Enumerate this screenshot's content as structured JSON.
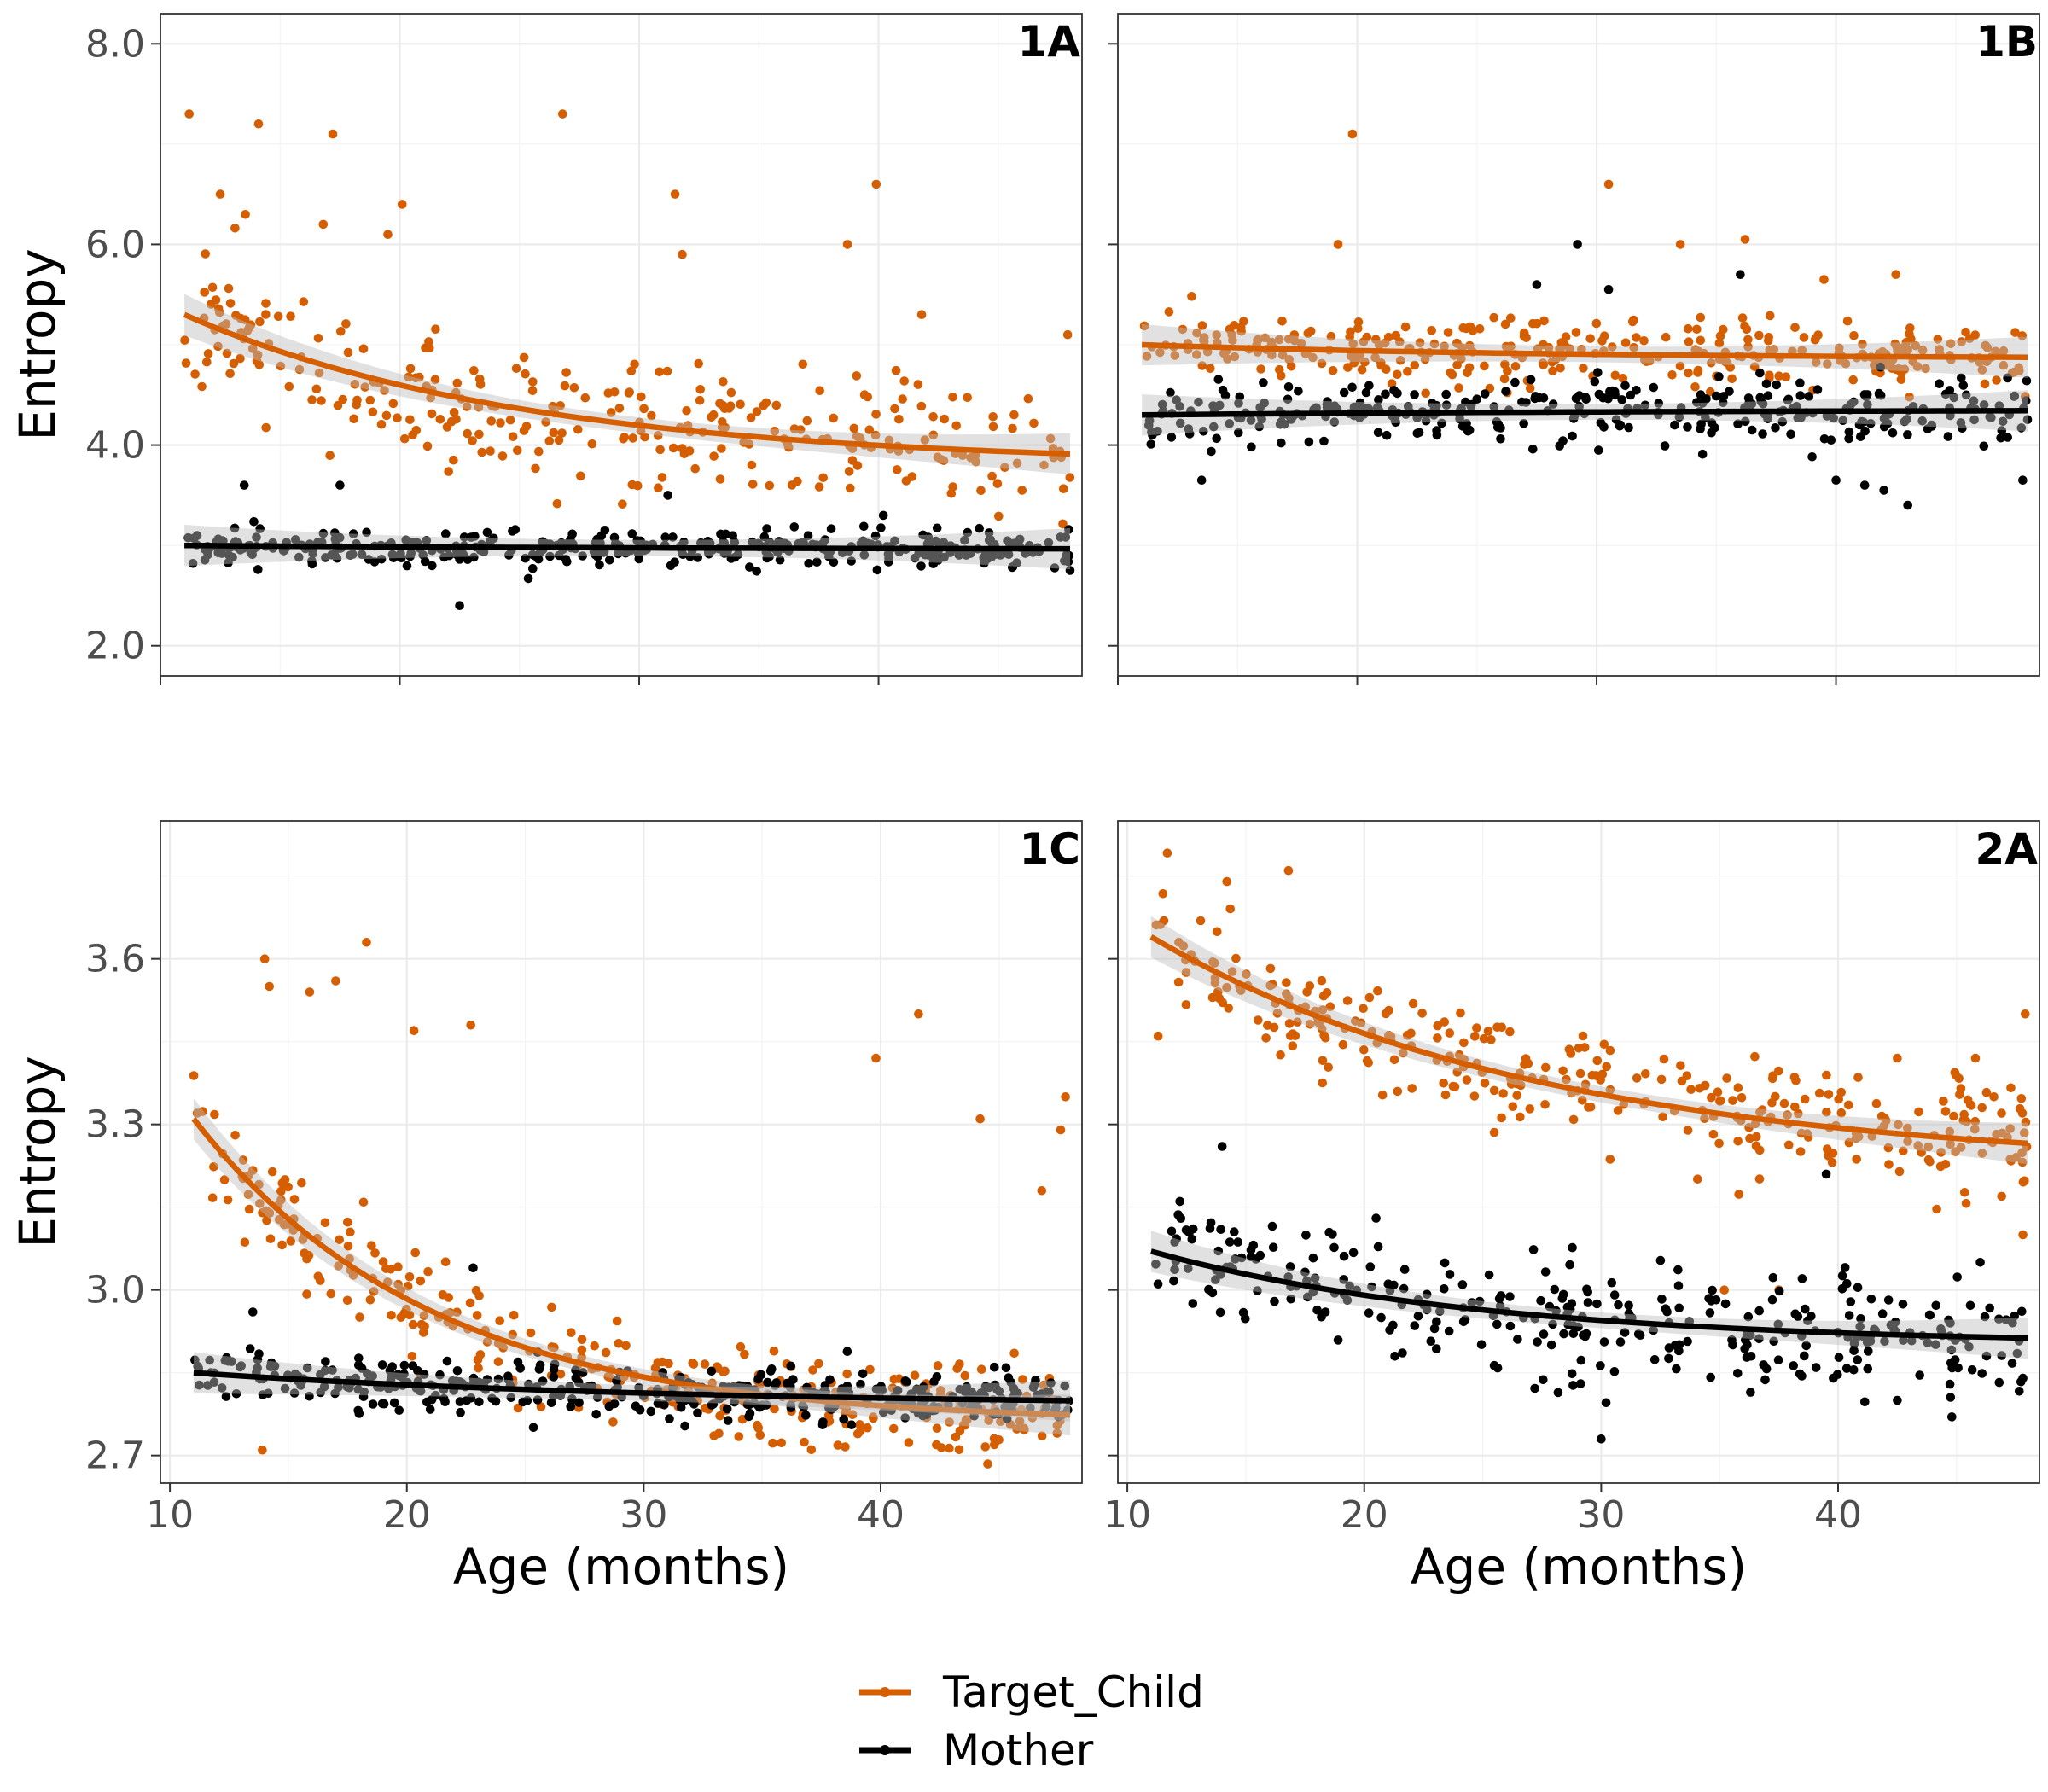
{
  "legend": {
    "items": [
      {
        "label": "Target_Child",
        "color": "#D55E00"
      },
      {
        "label": "Mother",
        "color": "#000000"
      }
    ]
  },
  "colors": {
    "child": "#D55E00",
    "mother": "#000000",
    "ribbon": "#cccccc"
  },
  "chart_data": [
    {
      "type": "scatter",
      "panel": "1A",
      "xlabel": "",
      "ylabel": "Entropy",
      "xlim": [
        10,
        48.5
      ],
      "ylim": [
        1.7,
        8.3
      ],
      "x_ticks": [
        10,
        20,
        30,
        40
      ],
      "y_ticks": [
        2.0,
        4.0,
        6.0,
        8.0
      ],
      "y_tick_labels": [
        "2.0",
        "4.0",
        "6.0",
        "8.0"
      ],
      "show_x_tick_labels": false,
      "grid": true,
      "series": [
        {
          "name": "Target_Child",
          "color": "#D55E00",
          "x_range": [
            11,
            48
          ],
          "points": 300,
          "seed": 11,
          "fit": {
            "a": 3.8,
            "b": 1.5,
            "k": 0.07
          },
          "jitter": 0.7,
          "outliers": [
            [
              11.2,
              7.3
            ],
            [
              12.5,
              6.5
            ],
            [
              14.1,
              7.2
            ],
            [
              17.2,
              7.1
            ],
            [
              19.5,
              6.1
            ],
            [
              20.1,
              6.4
            ],
            [
              26.8,
              7.3
            ],
            [
              31.5,
              6.5
            ],
            [
              39.9,
              6.6
            ],
            [
              38.7,
              6.0
            ],
            [
              16.8,
              6.2
            ],
            [
              31.8,
              5.9
            ],
            [
              41.8,
              5.3
            ],
            [
              47.9,
              5.1
            ]
          ]
        },
        {
          "name": "Mother",
          "color": "#000000",
          "x_range": [
            11,
            48
          ],
          "points": 380,
          "seed": 23,
          "fit": {
            "a": 2.96,
            "b": 0.04,
            "k": 0.05
          },
          "jitter": 0.17,
          "outliers": [
            [
              22.5,
              2.4
            ],
            [
              13.5,
              3.6
            ],
            [
              17.5,
              3.6
            ],
            [
              31.2,
              3.5
            ],
            [
              40.2,
              3.3
            ],
            [
              48,
              2.75
            ]
          ]
        }
      ]
    },
    {
      "type": "scatter",
      "panel": "1B",
      "xlabel": "",
      "ylabel": "",
      "xlim": [
        10,
        48.5
      ],
      "ylim": [
        1.7,
        8.3
      ],
      "x_ticks": [
        10,
        20,
        30,
        40
      ],
      "y_ticks": [
        2.0,
        4.0,
        6.0,
        8.0
      ],
      "show_x_tick_labels": false,
      "show_y_tick_labels": false,
      "grid": true,
      "series": [
        {
          "name": "Target_Child",
          "color": "#D55E00",
          "x_range": [
            11,
            48
          ],
          "points": 330,
          "seed": 37,
          "fit": {
            "a": 4.86,
            "b": 0.14,
            "k": 0.06
          },
          "jitter": 0.33,
          "outliers": [
            [
              19.8,
              7.1
            ],
            [
              30.5,
              6.6
            ],
            [
              19.2,
              6.0
            ],
            [
              36.2,
              6.05
            ],
            [
              33.5,
              6.0
            ],
            [
              39.5,
              5.65
            ],
            [
              42.5,
              5.7
            ]
          ]
        },
        {
          "name": "Mother",
          "color": "#000000",
          "x_range": [
            11,
            48
          ],
          "points": 330,
          "seed": 53,
          "fit": {
            "a": 4.35,
            "b": -0.05,
            "k": 0.05
          },
          "jitter": 0.32,
          "outliers": [
            [
              29.2,
              6.0
            ],
            [
              30.5,
              5.55
            ],
            [
              36,
              5.7
            ],
            [
              27.5,
              5.6
            ],
            [
              13.5,
              3.65
            ],
            [
              40,
              3.65
            ],
            [
              42,
              3.55
            ],
            [
              43,
              3.4
            ],
            [
              47.8,
              3.65
            ],
            [
              41.2,
              3.6
            ]
          ]
        }
      ]
    },
    {
      "type": "scatter",
      "panel": "1C",
      "xlabel": "Age (months)",
      "ylabel": "Entropy",
      "xlim": [
        9.6,
        48.5
      ],
      "ylim": [
        2.65,
        3.85
      ],
      "x_ticks": [
        10,
        20,
        30,
        40
      ],
      "y_ticks": [
        2.7,
        3.0,
        3.3,
        3.6
      ],
      "y_tick_labels": [
        "2.7",
        "3.0",
        "3.3",
        "3.6"
      ],
      "show_x_tick_labels": true,
      "grid": true,
      "series": [
        {
          "name": "Target_Child",
          "color": "#D55E00",
          "x_range": [
            11,
            48
          ],
          "points": 330,
          "seed": 71,
          "fit": {
            "a": 2.76,
            "b": 0.55,
            "k": 0.1
          },
          "jitter": 0.09,
          "outliers": [
            [
              14,
              3.6
            ],
            [
              18.3,
              3.63
            ],
            [
              17,
              3.56
            ],
            [
              14.2,
              3.55
            ],
            [
              15.9,
              3.54
            ],
            [
              20.3,
              3.47
            ],
            [
              22.7,
              3.48
            ],
            [
              39.8,
              3.42
            ],
            [
              41.6,
              3.5
            ],
            [
              44.2,
              3.31
            ],
            [
              47.8,
              3.35
            ],
            [
              47.6,
              3.29
            ],
            [
              46.8,
              3.18
            ],
            [
              13.9,
              2.71
            ]
          ]
        },
        {
          "name": "Mother",
          "color": "#000000",
          "x_range": [
            11,
            48
          ],
          "points": 400,
          "seed": 89,
          "fit": {
            "a": 2.79,
            "b": 0.06,
            "k": 0.05
          },
          "jitter": 0.045,
          "outliers": [
            [
              22.8,
              3.04
            ],
            [
              13.5,
              2.96
            ],
            [
              44.8,
              2.86
            ],
            [
              47.5,
              2.8
            ]
          ]
        }
      ]
    },
    {
      "type": "scatter",
      "panel": "2A",
      "xlabel": "Age (months)",
      "ylabel": "",
      "xlim": [
        9.6,
        48.5
      ],
      "ylim": [
        2.65,
        3.85
      ],
      "x_ticks": [
        10,
        20,
        30,
        40
      ],
      "y_ticks": [
        2.7,
        3.0,
        3.3,
        3.6
      ],
      "show_x_tick_labels": true,
      "show_y_tick_labels": false,
      "grid": true,
      "series": [
        {
          "name": "Target_Child",
          "color": "#D55E00",
          "x_range": [
            11,
            48
          ],
          "points": 340,
          "seed": 97,
          "fit": {
            "a": 3.22,
            "b": 0.42,
            "k": 0.06
          },
          "jitter": 0.11,
          "outliers": [
            [
              16.8,
              3.76
            ],
            [
              14.2,
              3.74
            ],
            [
              11.3,
              3.46
            ],
            [
              47.9,
              3.5
            ],
            [
              45.8,
              3.42
            ],
            [
              42.5,
              3.42
            ],
            [
              35.2,
              3.0
            ],
            [
              37.5,
              3.0
            ],
            [
              47.8,
              3.1
            ]
          ]
        },
        {
          "name": "Mother",
          "color": "#000000",
          "x_range": [
            11,
            48
          ],
          "points": 330,
          "seed": 131,
          "fit": {
            "a": 2.9,
            "b": 0.17,
            "k": 0.07
          },
          "jitter": 0.1,
          "outliers": [
            [
              14,
              3.26
            ],
            [
              20.5,
              3.13
            ],
            [
              30,
              2.73
            ],
            [
              42.5,
              2.8
            ],
            [
              44.8,
              2.77
            ],
            [
              47.8,
              2.84
            ],
            [
              46,
              3.05
            ],
            [
              39.5,
              3.21
            ]
          ]
        }
      ]
    }
  ]
}
